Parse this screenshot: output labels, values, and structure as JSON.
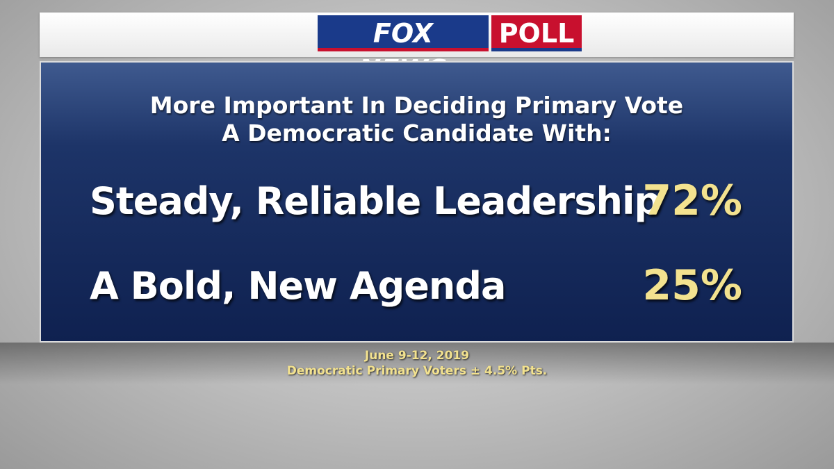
{
  "header": {
    "logo": "FOX NEWS",
    "logo_tag": "POLL"
  },
  "title": [
    "More Important In Deciding Primary Vote",
    "A Democratic Candidate With:"
  ],
  "rows": [
    {
      "label": "Steady, Reliable Leadership",
      "value": "72%"
    },
    {
      "label": "A Bold, New Agenda",
      "value": "25%"
    }
  ],
  "footer": {
    "date": "June 9-12, 2019",
    "note": "Democratic Primary Voters ± 4.5% Pts."
  }
}
